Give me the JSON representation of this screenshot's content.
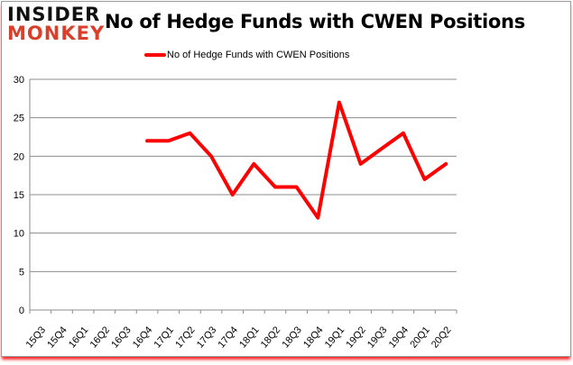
{
  "logo": {
    "line1": "INSIDER",
    "line2": "MONKEY"
  },
  "chart_data": {
    "type": "line",
    "title": "No of Hedge Funds with CWEN Positions",
    "xlabel": "",
    "ylabel": "",
    "ylim": [
      0,
      30
    ],
    "yticks": [
      0,
      5,
      10,
      15,
      20,
      25,
      30
    ],
    "grid": true,
    "legend_position": "top-center",
    "color": "#ff0000",
    "categories": [
      "15Q3",
      "15Q4",
      "16Q1",
      "16Q2",
      "16Q3",
      "16Q4",
      "17Q1",
      "17Q2",
      "17Q3",
      "17Q4",
      "18Q1",
      "18Q2",
      "18Q3",
      "18Q4",
      "19Q1",
      "19Q2",
      "19Q3",
      "19Q4",
      "20Q1",
      "20Q2"
    ],
    "series": [
      {
        "name": "No of Hedge Funds with CWEN Positions",
        "values": [
          null,
          null,
          null,
          null,
          null,
          22,
          22,
          23,
          20,
          15,
          19,
          16,
          16,
          12,
          27,
          19,
          21,
          23,
          17,
          19
        ]
      }
    ]
  }
}
